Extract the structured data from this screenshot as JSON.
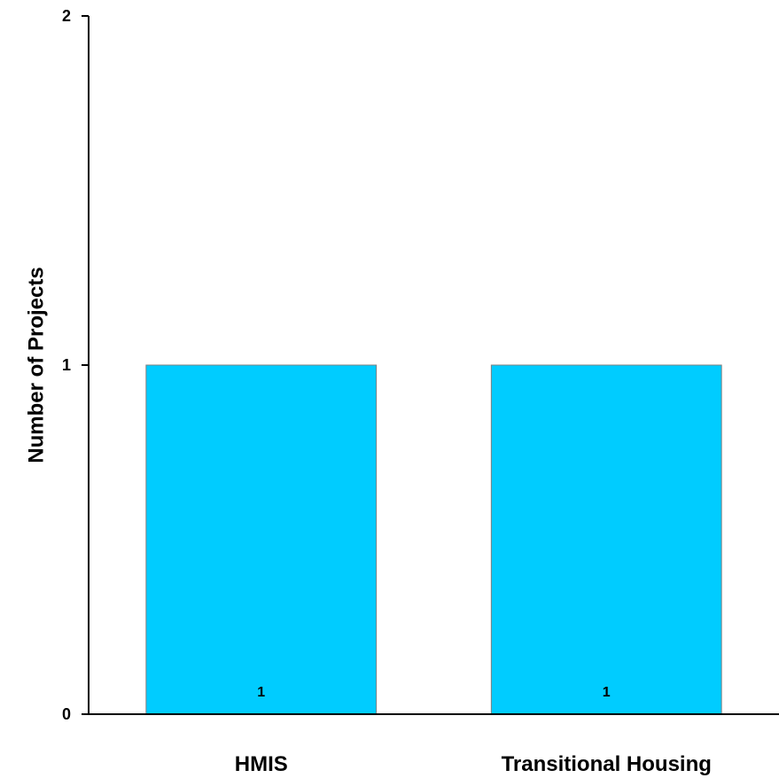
{
  "chart_data": {
    "type": "bar",
    "categories": [
      "HMIS",
      "Transitional Housing"
    ],
    "values": [
      1,
      1
    ],
    "data_labels": [
      "1",
      "1"
    ],
    "ylabel": "Number of Projects",
    "xlabel": "",
    "ylim": [
      0,
      2
    ],
    "yticks": [
      0,
      1,
      2
    ],
    "ytick_labels": [
      "0",
      "1",
      "2"
    ],
    "grid": false,
    "legend": "none",
    "bar_color": "#00CCFF",
    "bar_edge_color": "#7f7f7f"
  }
}
